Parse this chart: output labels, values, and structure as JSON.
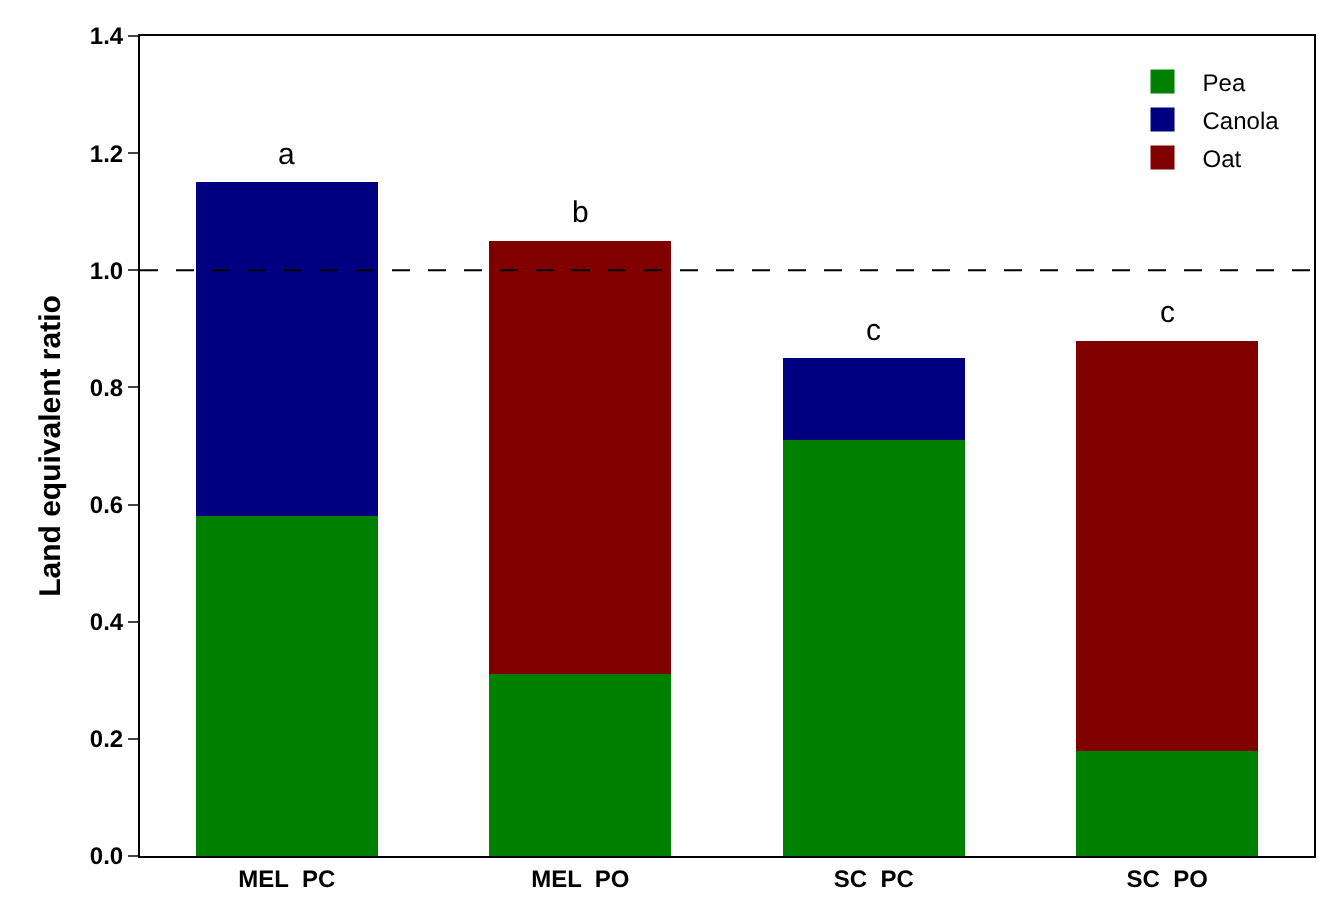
{
  "chart_data": {
    "type": "bar",
    "ylabel": "Land equivalent ratio",
    "categories": [
      "MEL  PC",
      "MEL  PO",
      "SC  PC",
      "SC  PO"
    ],
    "stacked": true,
    "series": [
      {
        "name": "Pea",
        "color": "#008000",
        "values": [
          0.58,
          0.31,
          0.71,
          0.18
        ]
      },
      {
        "name": "Canola",
        "color": "#000080",
        "values": [
          0.57,
          null,
          0.14,
          null
        ]
      },
      {
        "name": "Oat",
        "color": "#800000",
        "values": [
          null,
          0.74,
          null,
          0.7
        ]
      }
    ],
    "ylim": [
      0,
      1.4
    ],
    "yticks": [
      {
        "value": 0,
        "label": "0.0"
      },
      0.2,
      0.4,
      0.6,
      0.8,
      {
        "value": 1,
        "label": "1.0"
      },
      1.2,
      1.4
    ],
    "ref_lines": [
      {
        "axis": "y",
        "value": 1,
        "color": "#000000",
        "line_style": "dashed"
      }
    ],
    "annotations": [
      {
        "text": "a",
        "x": "MEL  PC",
        "y": 1.15
      },
      {
        "text": "b",
        "x": "MEL  PO",
        "y": 1.05
      },
      {
        "text": "c",
        "x": "SC  PC",
        "y": 0.85
      },
      {
        "text": "c",
        "x": "SC  PO",
        "y": 0.88
      }
    ],
    "grid": false,
    "legend": "top right"
  }
}
